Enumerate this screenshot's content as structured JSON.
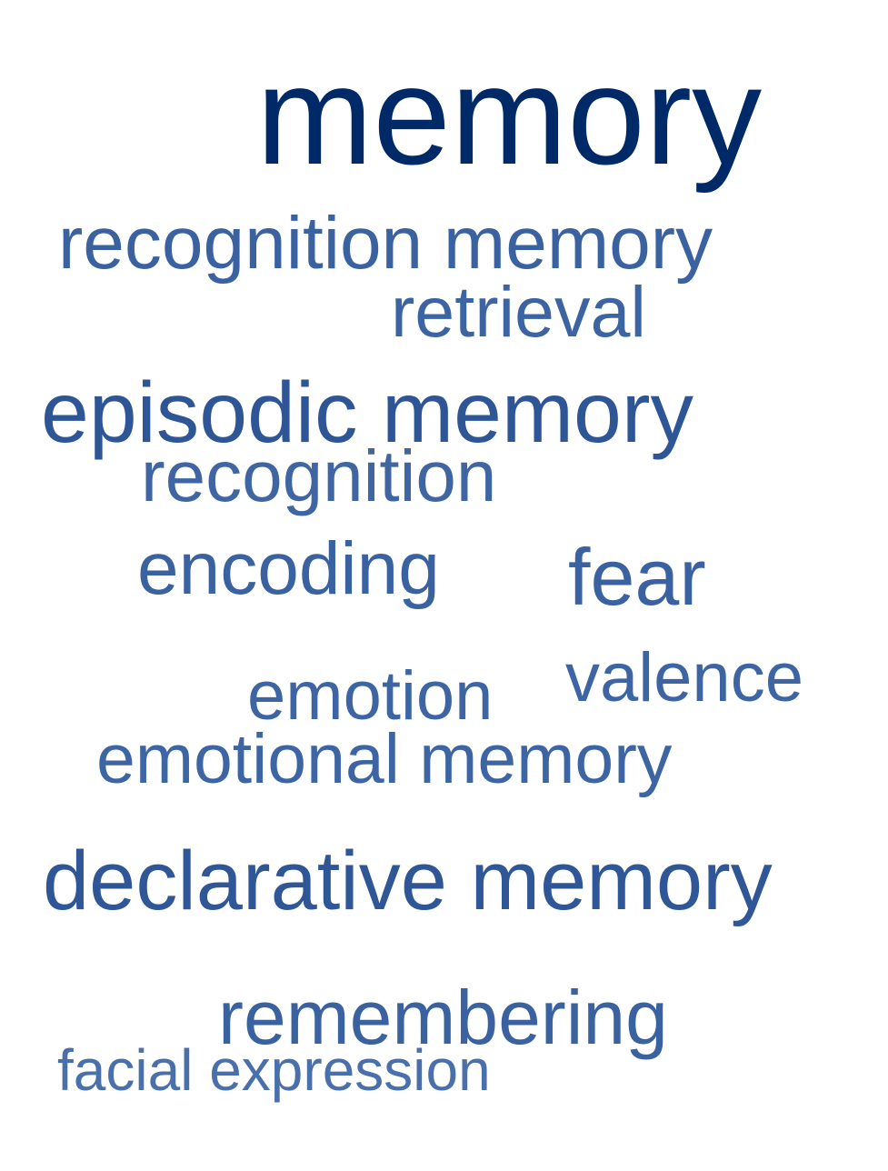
{
  "words": [
    {
      "text": "memory",
      "color": "#002968"
    },
    {
      "text": "recognition memory",
      "color": "#3a61a0"
    },
    {
      "text": "retrieval",
      "color": "#3c64a2"
    },
    {
      "text": "episodic memory",
      "color": "#2e5595"
    },
    {
      "text": "recognition",
      "color": "#3f66a3"
    },
    {
      "text": "encoding",
      "color": "#3a61a0"
    },
    {
      "text": "fear",
      "color": "#3a61a0"
    },
    {
      "text": "valence",
      "color": "#3e65a3"
    },
    {
      "text": "emotion",
      "color": "#3e65a3"
    },
    {
      "text": "emotional memory",
      "color": "#3e65a3"
    },
    {
      "text": "declarative memory",
      "color": "#2f5696"
    },
    {
      "text": "remembering",
      "color": "#3a61a0"
    },
    {
      "text": "facial expression",
      "color": "#4a70ab"
    }
  ]
}
